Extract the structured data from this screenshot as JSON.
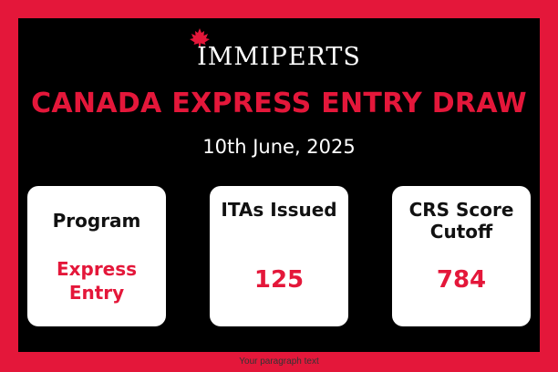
{
  "brand": {
    "name": "IMMIPERTS",
    "icon": "maple-leaf-icon",
    "accent_color": "#e4173a"
  },
  "headline": "CANADA EXPRESS ENTRY DRAW",
  "date": "10th June, 2025",
  "cards": [
    {
      "label": "Program",
      "value": "Express Entry"
    },
    {
      "label": "ITAs Issued",
      "value": "125"
    },
    {
      "label": "CRS Score Cutoff",
      "value": "784"
    }
  ],
  "footer": "Your paragraph text"
}
